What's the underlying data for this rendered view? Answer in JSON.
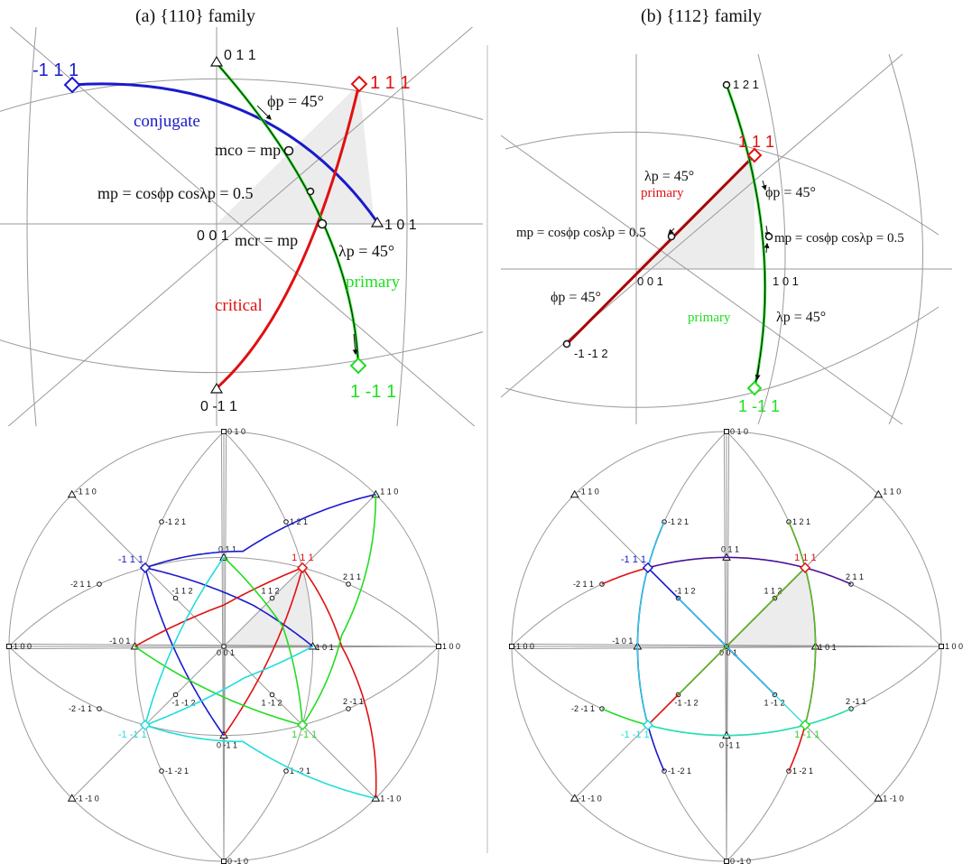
{
  "titles": {
    "a": "(a)  {110} family",
    "b": "(b)  {112} family"
  },
  "panel_a": {
    "poles": {
      "p011": "0 1 1",
      "p111": "1 1 1",
      "pm111": "-1 1 1",
      "p101": "1 0 1",
      "p001": "0 0 1",
      "p0m11": "0 -1 1",
      "p1m11": "1 -1 1"
    },
    "curve_labels": {
      "conjugate": "conjugate",
      "critical": "critical",
      "primary": "primary"
    },
    "equations": {
      "phi": "ϕp = 45°",
      "mco": "mco = mp",
      "mp": "mp = cosϕp cosλp = 0.5",
      "mcr": "mcr = mp",
      "lambda": "λp = 45°"
    }
  },
  "panel_b": {
    "poles": {
      "p121": "1 2 1",
      "p111": "1 1 1",
      "p001": "0 0 1",
      "p101": "1 0 1",
      "pm1m12": "-1 -1 2",
      "p1m11": "1 -1 1"
    },
    "curve_labels": {
      "primary_red": "primary",
      "primary_green": "primary"
    },
    "equations": {
      "lambda_red": "λp = 45°",
      "phi_green": "ϕp = 45°",
      "mp_left": "mp = cosϕp cosλp = 0.5",
      "mp_right": "mp = cosϕp cosλp = 0.5",
      "phi_red": "ϕp = 45°",
      "lambda_green": "λp = 45°"
    }
  },
  "stereo_labels": {
    "p010": "0 1 0",
    "p0m10": "0 -1 0",
    "pm100": "-1 0 0",
    "p100": "1 0 0",
    "pm110": "-1 1 0",
    "p110": "1 1 0",
    "pm1m10": "-1 -1 0",
    "p1m10": "1 -1 0",
    "pm121": "-1 2 1",
    "p121": "1 2 1",
    "pm1m21": "-1 -2 1",
    "p1m21": "1 -2 1",
    "pm211": "-2 1 1",
    "p211": "2 1 1",
    "pm2m11": "-2 -1 1",
    "p2m11": "2 -1 1",
    "pm111": "-1 1 1",
    "p111": "1 1 1",
    "pm1m11": "-1 -1 1",
    "p1m11": "1 -1 1",
    "p011": "0 1 1",
    "p0m11": "0 -1 1",
    "pm101": "-1 0 1",
    "p101": "1 0 1",
    "p001": "0 0 1",
    "pm112": "-1 1 2",
    "p112": "1 1 2",
    "pm1m12": "-1 -1 2",
    "p1m12": "1 -1 2"
  },
  "colors": {
    "blue": "#1a1acc",
    "red": "#e01010",
    "green": "#22dd22",
    "cyan": "#22dddd",
    "darkred": "#aa0000",
    "grid": "#9a9a9a",
    "shade": "#ececec"
  }
}
